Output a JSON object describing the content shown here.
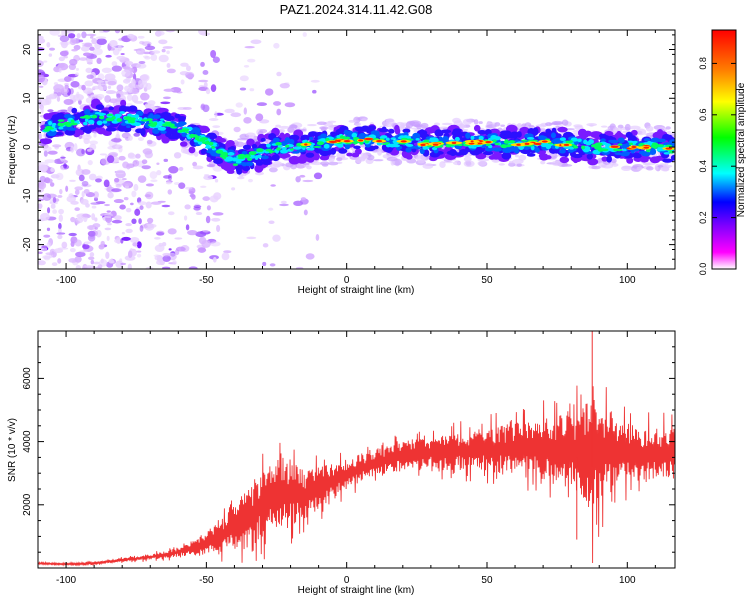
{
  "title": "PAZ1.2024.314.11.42.G08",
  "chart_data": [
    {
      "type": "heatmap",
      "xlabel": "Height of straight line (km)",
      "ylabel": "Frequency (Hz)",
      "xlim": [
        -110,
        117
      ],
      "ylim": [
        -25,
        24
      ],
      "xticks": [
        -100,
        -50,
        0,
        50,
        100
      ],
      "yticks": [
        -20,
        -10,
        0,
        10,
        20
      ],
      "colorbar": {
        "label": "Normalized spectral amplitude",
        "ticks": [
          0.0,
          0.2,
          0.4,
          0.6,
          0.8
        ],
        "range": [
          0,
          0.93
        ],
        "colormap": [
          "#ffffff",
          "#ff00ff",
          "#8000ff",
          "#0000ff",
          "#00ffff",
          "#00ff00",
          "#ffff00",
          "#ff8000",
          "#ff0000"
        ]
      },
      "ridge": {
        "x": [
          -108,
          -100,
          -90,
          -80,
          -70,
          -60,
          -50,
          -45,
          -40,
          -35,
          -30,
          -25,
          -20,
          -10,
          0,
          10,
          20,
          30,
          40,
          50,
          60,
          70,
          80,
          90,
          100,
          110,
          117
        ],
        "frequency": [
          4,
          5,
          6,
          6,
          5,
          4,
          1,
          -1,
          -3,
          -2,
          -1,
          0,
          0,
          0.5,
          1.5,
          1.5,
          1,
          0.5,
          1,
          1,
          0.5,
          1,
          0.5,
          0,
          0,
          0,
          -0.5
        ]
      }
    },
    {
      "type": "line",
      "xlabel": "Height of straight line (km)",
      "ylabel": "SNR (10 * v/v)",
      "xlim": [
        -110,
        117
      ],
      "ylim": [
        0,
        7500
      ],
      "xticks": [
        -100,
        -50,
        0,
        50,
        100
      ],
      "yticks": [
        2000,
        4000,
        6000
      ],
      "color": "#ee3333",
      "series": [
        {
          "x": [
            -110,
            -100,
            -90,
            -80,
            -70,
            -60,
            -55,
            -50,
            -45,
            -40,
            -35,
            -30,
            -25,
            -20,
            -15,
            -10,
            -5,
            0,
            5,
            10,
            15,
            20,
            25,
            30,
            35,
            40,
            45,
            50,
            55,
            60,
            65,
            70,
            75,
            80,
            85,
            88,
            90,
            95,
            100,
            105,
            110,
            117
          ],
          "values": [
            150,
            120,
            150,
            250,
            350,
            500,
            650,
            800,
            1000,
            1300,
            1600,
            2000,
            2300,
            2300,
            2300,
            2550,
            2750,
            2950,
            3150,
            3300,
            3450,
            3550,
            3600,
            3650,
            3650,
            3700,
            3700,
            3750,
            3750,
            3800,
            3800,
            3750,
            3750,
            3700,
            3650,
            3700,
            3700,
            3650,
            3650,
            3600,
            3600,
            3650
          ],
          "noise": [
            30,
            30,
            40,
            60,
            90,
            150,
            250,
            350,
            500,
            700,
            950,
            1100,
            1200,
            1000,
            800,
            700,
            600,
            500,
            450,
            450,
            450,
            450,
            450,
            500,
            550,
            600,
            650,
            700,
            750,
            850,
            950,
            1050,
            1150,
            1300,
            1500,
            2400,
            1700,
            1200,
            1000,
            900,
            850,
            800
          ],
          "annotations": {
            "peak": [
              87.5,
              7500
            ],
            "trough": [
              82,
              900
            ]
          }
        }
      ]
    }
  ]
}
